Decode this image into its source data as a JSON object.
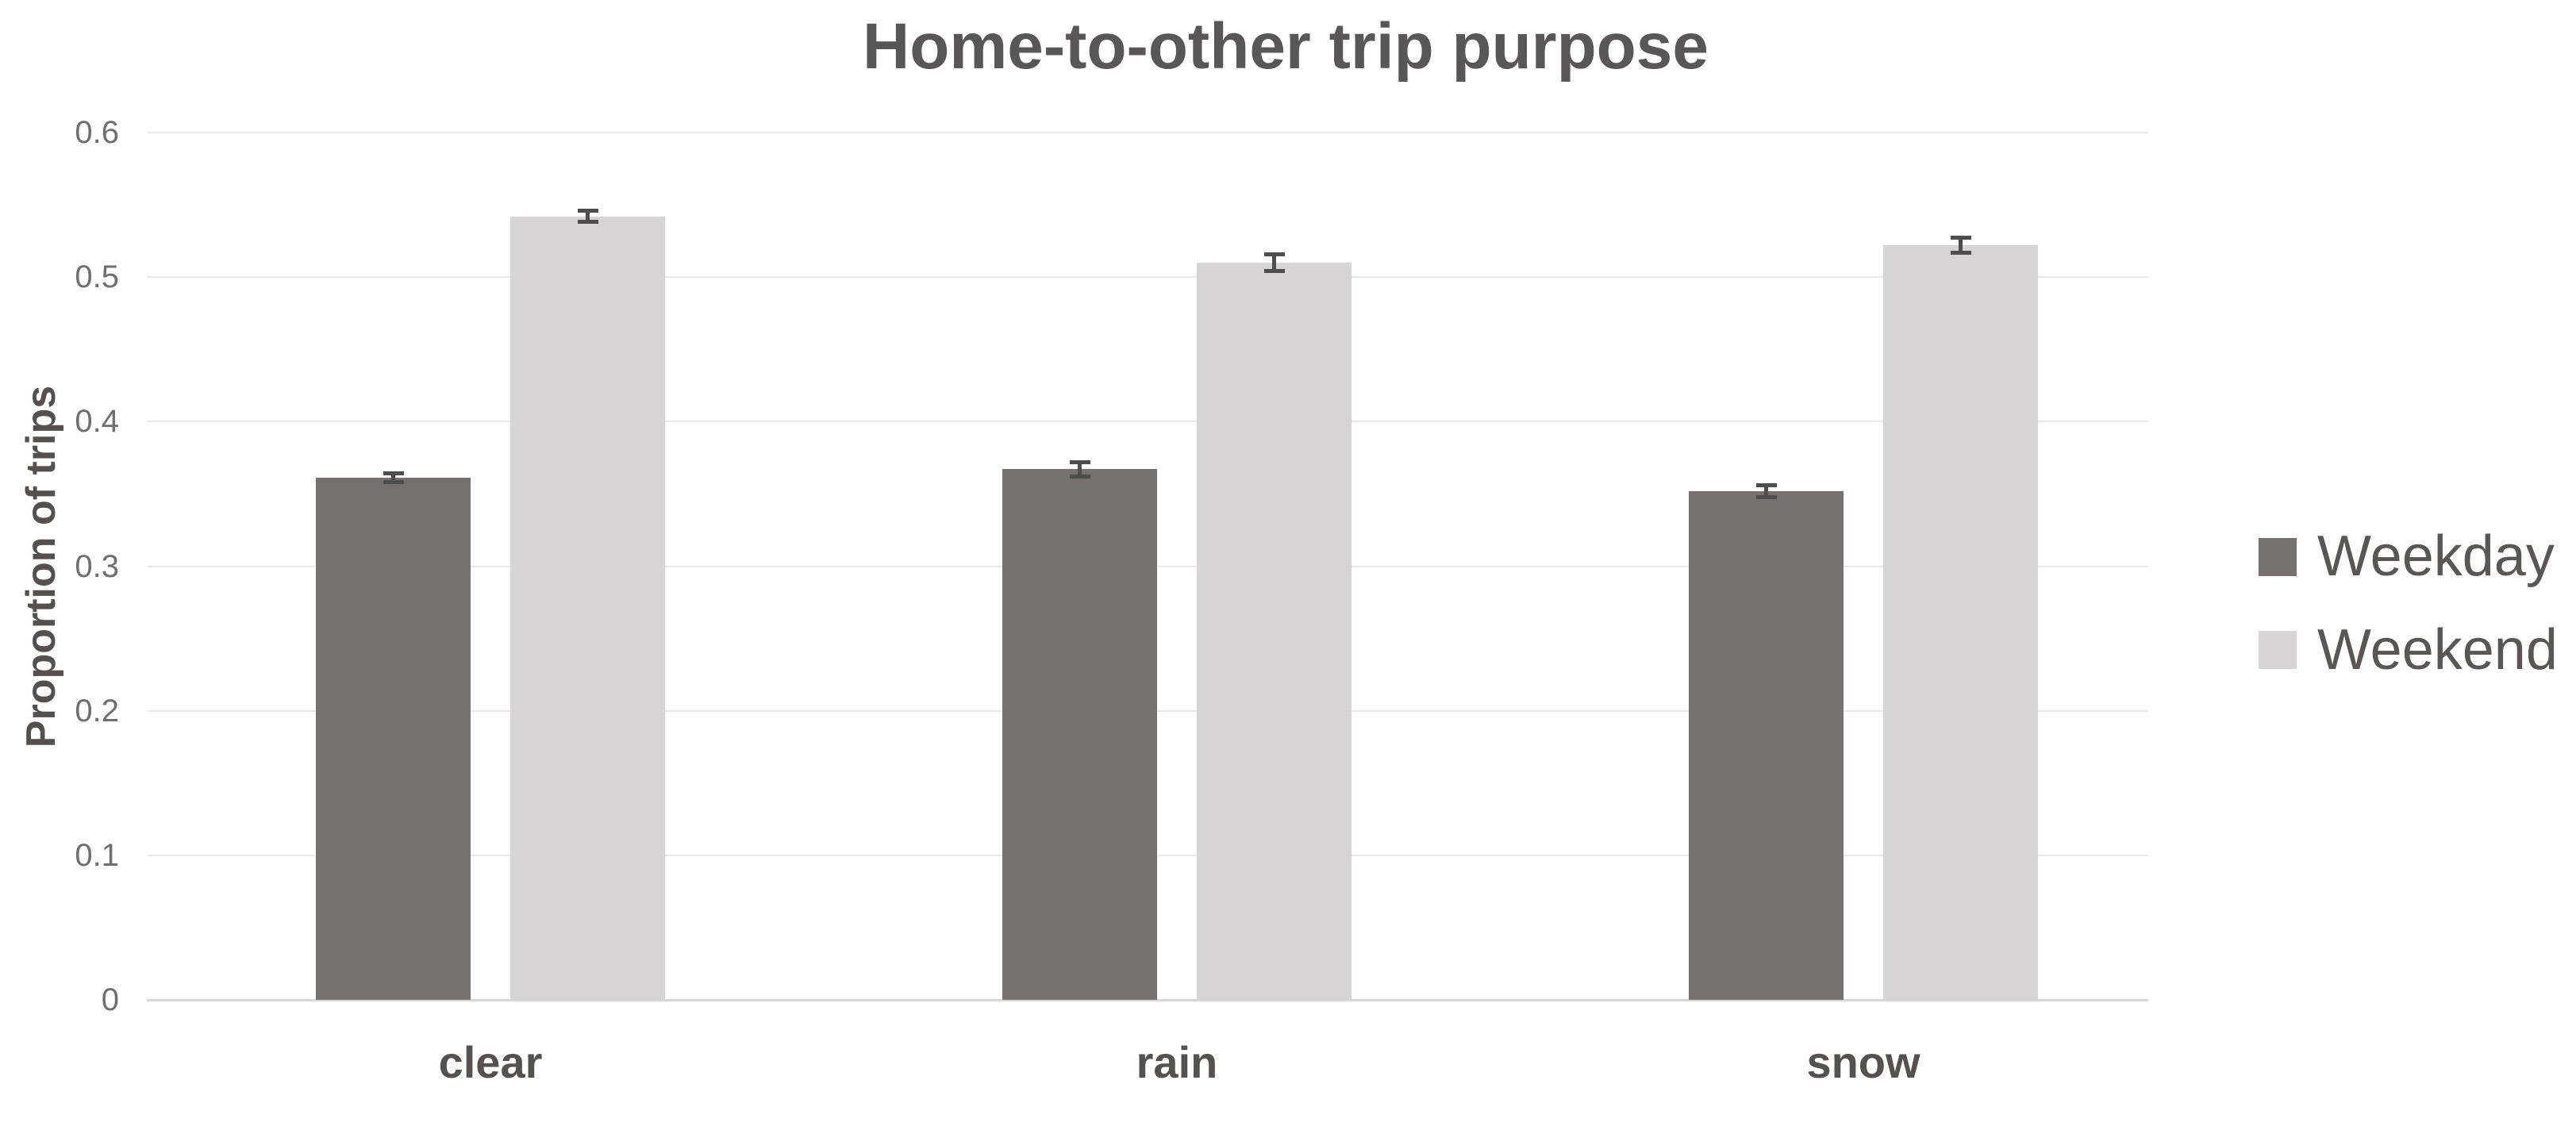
{
  "chart_data": {
    "type": "bar",
    "title": "Home-to-other trip purpose",
    "xlabel": "",
    "ylabel": "Proportion of trips",
    "categories": [
      "clear",
      "rain",
      "snow"
    ],
    "series": [
      {
        "name": "Weekday",
        "color": "#777070",
        "values": [
          0.361,
          0.367,
          0.352
        ],
        "errors": [
          0.003,
          0.005,
          0.004
        ]
      },
      {
        "name": "Weekend",
        "color": "#d6d4d4",
        "values": [
          0.542,
          0.51,
          0.522
        ],
        "errors": [
          0.004,
          0.006,
          0.005
        ]
      }
    ],
    "ylim": [
      0,
      0.6
    ],
    "ytick_values": [
      0,
      0.1,
      0.2,
      0.3,
      0.4,
      0.5,
      0.6
    ],
    "ytick_labels": [
      "0",
      "0.1",
      "0.2",
      "0.3",
      "0.4",
      "0.5",
      "0.6"
    ],
    "grid": true,
    "legend_position": "right",
    "error_bars": true
  },
  "legend": {
    "items": [
      {
        "label": "Weekday",
        "color": "#777070"
      },
      {
        "label": "Weekend",
        "color": "#d6d4d4"
      }
    ]
  },
  "colors": {
    "background": "#ffffff",
    "gridline": "#e9e9e9",
    "zero_line": "#d8d6d6",
    "error_bar": "#4d4d4d",
    "title_text": "#595657",
    "tick_text": "#6f6f6f",
    "axis_title_text": "#55504f",
    "category_text": "#555150",
    "legend_text": "#595655"
  }
}
